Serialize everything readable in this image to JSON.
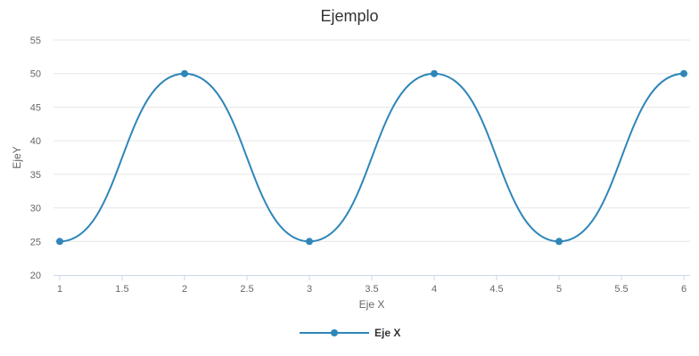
{
  "chart_data": {
    "type": "line",
    "title": "Ejemplo",
    "xlabel": "Eje X",
    "ylabel": "EjeY",
    "x_ticks": [
      "1",
      "1.5",
      "2",
      "2.5",
      "3",
      "3.5",
      "4",
      "4.5",
      "5",
      "5.5",
      "6"
    ],
    "y_ticks": [
      "20",
      "25",
      "30",
      "35",
      "40",
      "45",
      "50",
      "55"
    ],
    "xlim": [
      1,
      6
    ],
    "ylim": [
      20,
      55
    ],
    "grid": true,
    "legend_position": "bottom-center",
    "series": [
      {
        "name": "Eje X",
        "color": "#2f86b9",
        "smooth": true,
        "x": [
          1,
          2,
          3,
          4,
          5,
          6
        ],
        "values": [
          25,
          50,
          25,
          50,
          25,
          50
        ]
      }
    ]
  }
}
